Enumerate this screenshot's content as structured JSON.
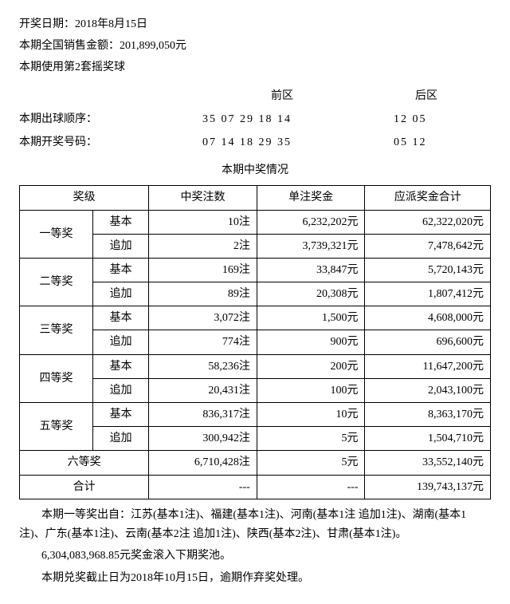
{
  "header": {
    "date_label": "开奖日期：",
    "date_value": "2018年8月15日",
    "sales_label": "本期全国销售金额：",
    "sales_value": "201,899,050元",
    "ballset_label": "本期使用第2套摇奖球"
  },
  "zones": {
    "front_label": "前区",
    "back_label": "后区",
    "draw_order_label": "本期出球顺序：",
    "draw_order_front": "35 07 29 18 14",
    "draw_order_back": "12 05",
    "winning_label": "本期开奖号码：",
    "winning_front": "07 14 18 29 35",
    "winning_back": "05 12"
  },
  "prize_section_title": "本期中奖情况",
  "table": {
    "columns": [
      "奖级",
      "中奖注数",
      "单注奖金",
      "应派奖金合计"
    ],
    "subtypes": {
      "basic": "基本",
      "add": "追加"
    },
    "tiers": [
      {
        "name": "一等奖",
        "basic": {
          "count": "10注",
          "unit": "6,232,202元",
          "total": "62,322,020元"
        },
        "add": {
          "count": "2注",
          "unit": "3,739,321元",
          "total": "7,478,642元"
        }
      },
      {
        "name": "二等奖",
        "basic": {
          "count": "169注",
          "unit": "33,847元",
          "total": "5,720,143元"
        },
        "add": {
          "count": "89注",
          "unit": "20,308元",
          "total": "1,807,412元"
        }
      },
      {
        "name": "三等奖",
        "basic": {
          "count": "3,072注",
          "unit": "1,500元",
          "total": "4,608,000元"
        },
        "add": {
          "count": "774注",
          "unit": "900元",
          "total": "696,600元"
        }
      },
      {
        "name": "四等奖",
        "basic": {
          "count": "58,236注",
          "unit": "200元",
          "total": "11,647,200元"
        },
        "add": {
          "count": "20,431注",
          "unit": "100元",
          "total": "2,043,100元"
        }
      },
      {
        "name": "五等奖",
        "basic": {
          "count": "836,317注",
          "unit": "10元",
          "total": "8,363,170元"
        },
        "add": {
          "count": "300,942注",
          "unit": "5元",
          "total": "1,504,710元"
        }
      }
    ],
    "sixth": {
      "name": "六等奖",
      "count": "6,710,428注",
      "unit": "5元",
      "total": "33,552,140元"
    },
    "sum": {
      "name": "合计",
      "count": "---",
      "unit": "---",
      "total": "139,743,137元"
    }
  },
  "footer": {
    "line1": "本期一等奖出自：江苏(基本1注)、福建(基本1注)、河南(基本1注 追加1注)、湖南(基本1注)、广东(基本1注)、云南(基本2注 追加1注)、陕西(基本2注)、甘肃(基本1注)。",
    "line2": "6,304,083,968.85元奖金滚入下期奖池。",
    "line3": "本期兑奖截止日为2018年10月15日，逾期作弃奖处理。"
  }
}
